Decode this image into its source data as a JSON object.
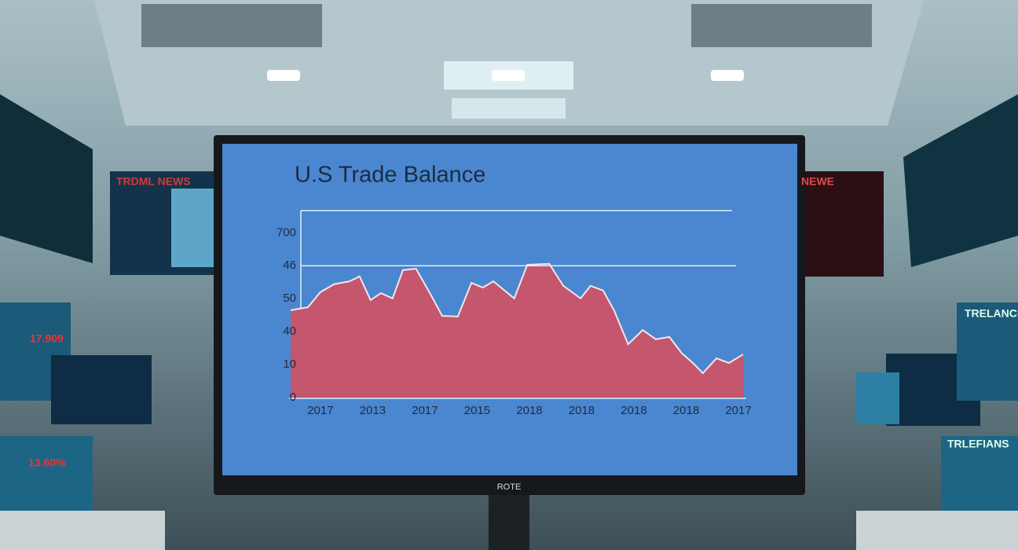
{
  "background": {
    "labels": [
      "TRDML NEWS",
      "NEWE",
      "17.909",
      "13.60%",
      "TRELANCE FA",
      "TRLEFIANS"
    ]
  },
  "monitor": {
    "label": "ROTE"
  },
  "chart_data": {
    "type": "area",
    "title": "U.S Trade Balance",
    "x": [
      -0.57,
      -0.24,
      0,
      0.26,
      0.56,
      0.75,
      0.96,
      1.16,
      1.38,
      1.58,
      1.83,
      2.11,
      2.33,
      2.63,
      2.89,
      3.11,
      3.31,
      3.71,
      3.96,
      4.38,
      4.65,
      4.98,
      5.17,
      5.41,
      5.62,
      5.89,
      6.17,
      6.42,
      6.68,
      6.92,
      7.13,
      7.32,
      7.58,
      7.82,
      8.09
    ],
    "values": [
      2.65,
      2.74,
      3.2,
      3.44,
      3.53,
      3.68,
      2.96,
      3.17,
      3.01,
      3.87,
      3.91,
      3.13,
      2.48,
      2.46,
      3.48,
      3.34,
      3.53,
      3.01,
      4.03,
      4.06,
      3.39,
      3.01,
      3.39,
      3.25,
      2.65,
      1.62,
      2.05,
      1.77,
      1.84,
      1.34,
      1.05,
      0.74,
      1.19,
      1.05,
      1.31
    ],
    "color": "#c4566e",
    "xlim": [
      -0.6,
      8.15
    ],
    "xticks": [
      {
        "value": 0,
        "label": "2017"
      },
      {
        "value": 1,
        "label": "2013"
      },
      {
        "value": 2,
        "label": "2017"
      },
      {
        "value": 3,
        "label": "2015"
      },
      {
        "value": 4,
        "label": "2018"
      },
      {
        "value": 5,
        "label": "2018"
      },
      {
        "value": 6,
        "label": "2018"
      },
      {
        "value": 7,
        "label": "2018"
      },
      {
        "value": 8,
        "label": "2017"
      }
    ],
    "ylim": [
      0,
      5.7
    ],
    "yticks": [
      {
        "value": 0,
        "label": "0"
      },
      {
        "value": 1,
        "label": "10"
      },
      {
        "value": 2,
        "label": "40"
      },
      {
        "value": 3,
        "label": "50"
      },
      {
        "value": 4,
        "label": "46"
      },
      {
        "value": 5,
        "label": "700"
      }
    ]
  }
}
